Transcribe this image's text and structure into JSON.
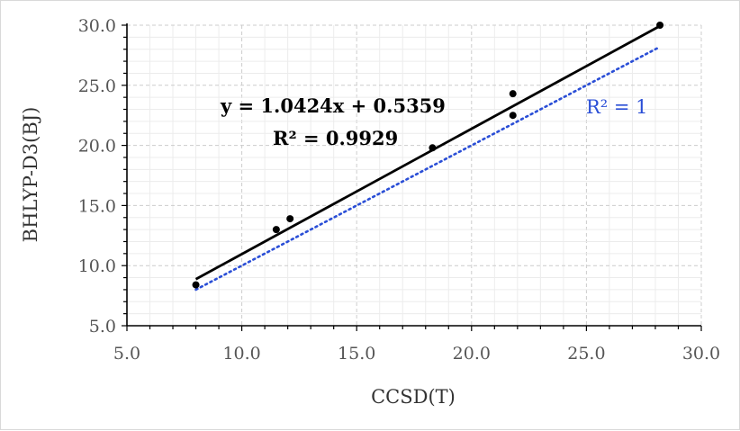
{
  "chart_data": {
    "type": "scatter",
    "xlabel": "CCSD(T)",
    "ylabel": "BHLYP-D3(BJ)",
    "xlim": [
      5.0,
      30.0
    ],
    "ylim": [
      5.0,
      30.0
    ],
    "x_ticks": [
      "5.0",
      "10.0",
      "15.0",
      "20.0",
      "25.0",
      "30.0"
    ],
    "y_ticks": [
      "5.0",
      "10.0",
      "15.0",
      "20.0",
      "25.0",
      "30.0"
    ],
    "grid": true,
    "points": [
      {
        "x": 8.0,
        "y": 8.4
      },
      {
        "x": 11.5,
        "y": 13.0
      },
      {
        "x": 12.1,
        "y": 13.9
      },
      {
        "x": 18.3,
        "y": 19.8
      },
      {
        "x": 21.8,
        "y": 22.5
      },
      {
        "x": 21.8,
        "y": 24.3
      },
      {
        "x": 28.2,
        "y": 30.0
      }
    ],
    "fit_line": {
      "slope": 1.0424,
      "intercept": 0.5359,
      "x_range": [
        8.0,
        28.2
      ],
      "color": "#000000"
    },
    "reference_line": {
      "slope": 1,
      "intercept": 0,
      "x_range": [
        8.0,
        28.2
      ],
      "color": "#2a4ed6",
      "style": "dotted"
    },
    "annotations": {
      "equation": "y = 1.0424x + 0.5359",
      "r_squared": "R² = 0.9929",
      "reference_r_squared": "R² = 1"
    }
  }
}
